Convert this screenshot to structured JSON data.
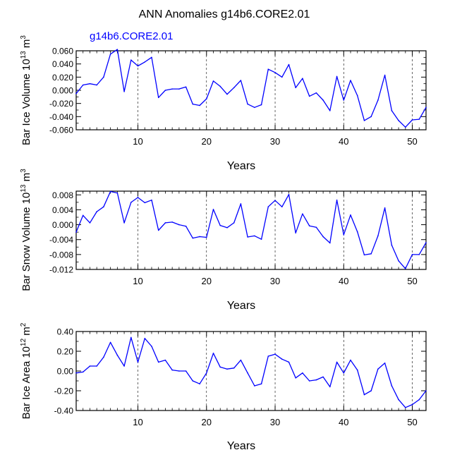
{
  "chart_data": [
    {
      "type": "line",
      "title": "ANN Anomalies g14b6.CORE2.01",
      "legend": "g14b6.CORE2.01",
      "ylabel": "Bar Ice Volume 10",
      "ylabel_exp": "13",
      "ylabel_unit": " m",
      "ylabel_unit_exp": "3",
      "xlabel": "Years",
      "xlim": [
        1,
        52
      ],
      "ylim": [
        -0.06,
        0.06
      ],
      "xticks": [
        10,
        20,
        30,
        40,
        50
      ],
      "yticks": [
        0.06,
        0.04,
        0.02,
        0.0,
        -0.02,
        -0.04,
        -0.06
      ],
      "yticklabels": [
        "0.060",
        "0.040",
        "0.020",
        "0.000",
        "-0.020",
        "-0.040",
        "-0.060"
      ],
      "x": [
        1,
        2,
        3,
        4,
        5,
        6,
        7,
        8,
        9,
        10,
        11,
        12,
        13,
        14,
        15,
        16,
        17,
        18,
        19,
        20,
        21,
        22,
        23,
        24,
        25,
        26,
        27,
        28,
        29,
        30,
        31,
        32,
        33,
        34,
        35,
        36,
        37,
        38,
        39,
        40,
        41,
        42,
        43,
        44,
        45,
        46,
        47,
        48,
        49,
        50,
        51,
        52
      ],
      "values": [
        -0.005,
        0.008,
        0.01,
        0.008,
        0.02,
        0.055,
        0.062,
        -0.002,
        0.046,
        0.037,
        0.043,
        0.05,
        -0.011,
        0.0,
        0.002,
        0.002,
        0.005,
        -0.021,
        -0.023,
        -0.013,
        0.014,
        0.006,
        -0.006,
        0.004,
        0.015,
        -0.021,
        -0.026,
        -0.022,
        0.032,
        0.027,
        0.02,
        0.039,
        0.004,
        0.018,
        -0.009,
        -0.004,
        -0.015,
        -0.031,
        0.021,
        -0.015,
        0.015,
        -0.008,
        -0.046,
        -0.04,
        -0.015,
        0.023,
        -0.031,
        -0.046,
        -0.056,
        -0.045,
        -0.044,
        -0.026
      ]
    },
    {
      "type": "line",
      "ylabel": "Bar Snow Volume 10",
      "ylabel_exp": "13",
      "ylabel_unit": " m",
      "ylabel_unit_exp": "3",
      "xlabel": "Years",
      "xlim": [
        1,
        52
      ],
      "ylim": [
        -0.012,
        0.009
      ],
      "xticks": [
        10,
        20,
        30,
        40,
        50
      ],
      "yticks": [
        0.008,
        0.004,
        0.0,
        -0.004,
        -0.008,
        -0.012
      ],
      "yticklabels": [
        "0.008",
        "0.004",
        "0.000",
        "-0.004",
        "-0.008",
        "-0.012"
      ],
      "x": [
        1,
        2,
        3,
        4,
        5,
        6,
        7,
        8,
        9,
        10,
        11,
        12,
        13,
        14,
        15,
        16,
        17,
        18,
        19,
        20,
        21,
        22,
        23,
        24,
        25,
        26,
        27,
        28,
        29,
        30,
        31,
        32,
        33,
        34,
        35,
        36,
        37,
        38,
        39,
        40,
        41,
        42,
        43,
        44,
        45,
        46,
        47,
        48,
        49,
        50,
        51,
        52
      ],
      "values": [
        -0.002,
        0.0025,
        0.0005,
        0.0035,
        0.0048,
        0.0089,
        0.0085,
        0.0005,
        0.006,
        0.0073,
        0.0059,
        0.0066,
        -0.0015,
        0.0005,
        0.0007,
        0.0,
        -0.0004,
        -0.0036,
        -0.0032,
        -0.0034,
        0.0041,
        -0.0002,
        -0.0008,
        0.0005,
        0.0056,
        -0.0033,
        -0.003,
        -0.0039,
        0.0048,
        0.0065,
        0.0048,
        0.0081,
        -0.0022,
        0.0029,
        -0.0003,
        -0.0007,
        -0.0032,
        -0.0049,
        0.0066,
        -0.0027,
        0.0026,
        -0.0019,
        -0.0081,
        -0.0078,
        -0.003,
        0.0045,
        -0.0055,
        -0.0097,
        -0.0118,
        -0.008,
        -0.008,
        -0.0048
      ]
    },
    {
      "type": "line",
      "ylabel": "Bar Ice Area 10",
      "ylabel_exp": "12",
      "ylabel_unit": " m",
      "ylabel_unit_exp": "2",
      "xlabel": "Years",
      "xlim": [
        1,
        52
      ],
      "ylim": [
        -0.4,
        0.4
      ],
      "xticks": [
        10,
        20,
        30,
        40,
        50
      ],
      "yticks": [
        0.4,
        0.2,
        0.0,
        -0.2,
        -0.4
      ],
      "yticklabels": [
        "0.40",
        "0.20",
        "0.00",
        "-0.20",
        "-0.40"
      ],
      "x": [
        1,
        2,
        3,
        4,
        5,
        6,
        7,
        8,
        9,
        10,
        11,
        12,
        13,
        14,
        15,
        16,
        17,
        18,
        19,
        20,
        21,
        22,
        23,
        24,
        25,
        26,
        27,
        28,
        29,
        30,
        31,
        32,
        33,
        34,
        35,
        36,
        37,
        38,
        39,
        40,
        41,
        42,
        43,
        44,
        45,
        46,
        47,
        48,
        49,
        50,
        51,
        52
      ],
      "values": [
        -0.02,
        -0.01,
        0.05,
        0.05,
        0.14,
        0.29,
        0.16,
        0.05,
        0.34,
        0.09,
        0.33,
        0.25,
        0.09,
        0.11,
        0.01,
        0.0,
        0.0,
        -0.1,
        -0.13,
        -0.02,
        0.18,
        0.04,
        0.02,
        0.03,
        0.11,
        -0.02,
        -0.15,
        -0.13,
        0.15,
        0.17,
        0.12,
        0.09,
        -0.07,
        -0.02,
        -0.1,
        -0.09,
        -0.06,
        -0.16,
        0.09,
        -0.02,
        0.11,
        0.01,
        -0.24,
        -0.2,
        0.02,
        0.08,
        -0.15,
        -0.29,
        -0.37,
        -0.34,
        -0.29,
        -0.2
      ]
    }
  ],
  "colors": {
    "line": "#0000ff",
    "axis": "#000000",
    "grid": "#000000"
  }
}
